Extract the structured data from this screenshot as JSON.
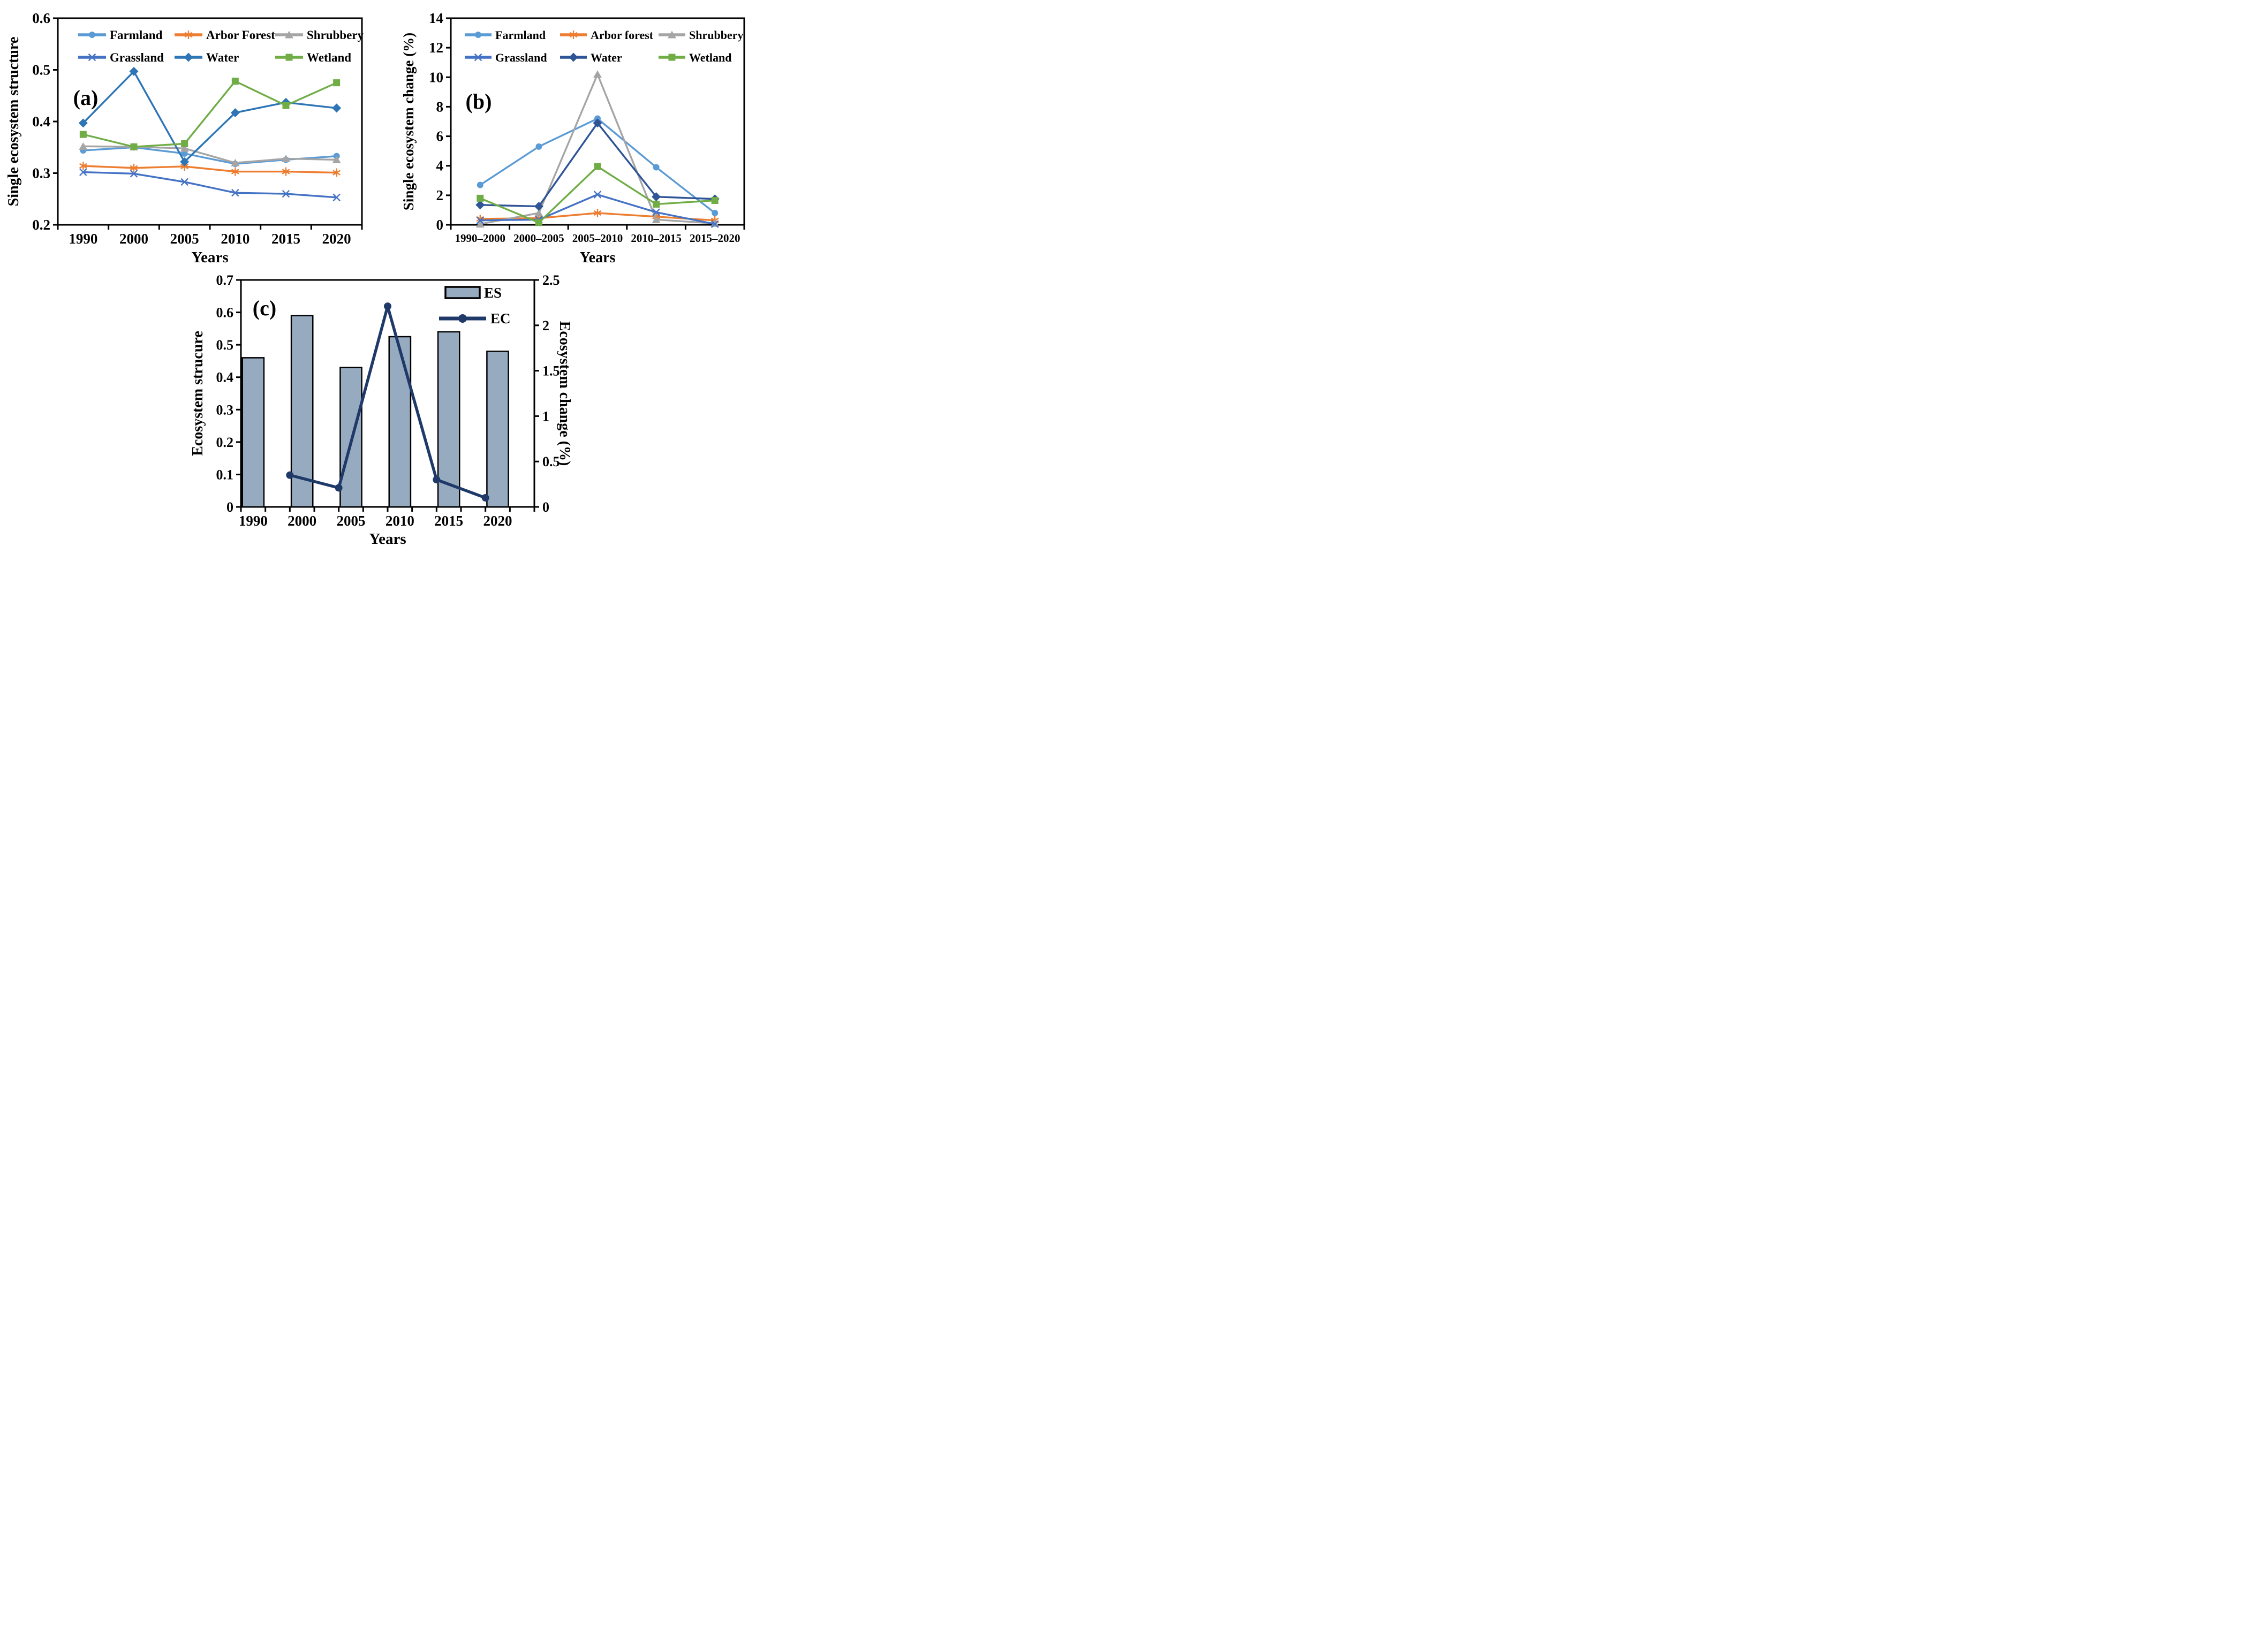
{
  "figure": {
    "background": "#ffffff",
    "panel_letters": [
      "(a)",
      "(b)",
      "(c)"
    ]
  },
  "chart_data": [
    {
      "id": "a",
      "type": "line",
      "panel_label": "(a)",
      "xlabel": "Years",
      "ylabel": "Single ecosystem structure",
      "ylim": [
        0.2,
        0.6
      ],
      "yticks": [
        0.2,
        0.3,
        0.4,
        0.5,
        0.6
      ],
      "ytick_labels": [
        "0.2",
        "0.3",
        "0.4",
        "0.5",
        "0.6"
      ],
      "categories": [
        "1990",
        "2000",
        "2005",
        "2010",
        "2015",
        "2020"
      ],
      "grid": false,
      "legend_position": "top-inside",
      "series": [
        {
          "name": "Farmland",
          "color": "#5B9BD5",
          "marker": "circle",
          "values": [
            0.344,
            0.35,
            0.338,
            0.318,
            0.326,
            0.333
          ]
        },
        {
          "name": "Arbor Forest",
          "color": "#ED7D31",
          "marker": "asterisk",
          "values": [
            0.314,
            0.31,
            0.313,
            0.303,
            0.303,
            0.301
          ]
        },
        {
          "name": "Shrubbery",
          "color": "#A5A5A5",
          "marker": "triangle",
          "values": [
            0.352,
            0.351,
            0.348,
            0.32,
            0.328,
            0.326
          ]
        },
        {
          "name": "Grassland",
          "color": "#4472C4",
          "marker": "x",
          "values": [
            0.302,
            0.299,
            0.283,
            0.262,
            0.26,
            0.253
          ]
        },
        {
          "name": "Water",
          "color": "#2E75B6",
          "marker": "diamond",
          "values": [
            0.397,
            0.497,
            0.322,
            0.417,
            0.437,
            0.426
          ]
        },
        {
          "name": "Wetland",
          "color": "#70AD47",
          "marker": "square",
          "values": [
            0.375,
            0.351,
            0.357,
            0.478,
            0.431,
            0.475
          ]
        }
      ]
    },
    {
      "id": "b",
      "type": "line",
      "panel_label": "(b)",
      "xlabel": "Years",
      "ylabel": "Single ecosystem change (%)",
      "ylim": [
        0,
        14
      ],
      "yticks": [
        0,
        2,
        4,
        6,
        8,
        10,
        12,
        14
      ],
      "ytick_labels": [
        "0",
        "2",
        "4",
        "6",
        "8",
        "10",
        "12",
        "14"
      ],
      "categories": [
        "1990–2000",
        "2000–2005",
        "2005–2010",
        "2010–2015",
        "2015–2020"
      ],
      "grid": false,
      "legend_position": "top-inside",
      "series": [
        {
          "name": "Farmland",
          "color": "#5B9BD5",
          "marker": "circle",
          "values": [
            2.7,
            5.3,
            7.2,
            3.9,
            0.8
          ]
        },
        {
          "name": "Arbor forest",
          "color": "#ED7D31",
          "marker": "asterisk",
          "values": [
            0.4,
            0.45,
            0.8,
            0.55,
            0.3
          ]
        },
        {
          "name": "Shrubbery",
          "color": "#A5A5A5",
          "marker": "triangle",
          "values": [
            0.05,
            0.8,
            10.2,
            0.35,
            0.1
          ]
        },
        {
          "name": "Grassland",
          "color": "#4472C4",
          "marker": "x",
          "values": [
            0.3,
            0.35,
            2.05,
            0.85,
            0.05
          ]
        },
        {
          "name": "Water",
          "color": "#2F5597",
          "marker": "diamond",
          "values": [
            1.35,
            1.25,
            6.9,
            1.9,
            1.75
          ]
        },
        {
          "name": "Wetland",
          "color": "#70AD47",
          "marker": "square",
          "values": [
            1.8,
            0.15,
            3.95,
            1.4,
            1.65
          ]
        }
      ]
    },
    {
      "id": "c",
      "type": "combo",
      "panel_label": "(c)",
      "xlabel": "Years",
      "ylabel_left": "Ecosystem strucure",
      "ylabel_right": "Ecosystem change (%)",
      "ylim_left": [
        0,
        0.7
      ],
      "yticks_left": [
        0,
        0.1,
        0.2,
        0.3,
        0.4,
        0.5,
        0.6,
        0.7
      ],
      "ytick_labels_left": [
        "0",
        "0.1",
        "0.2",
        "0.3",
        "0.4",
        "0.5",
        "0.6",
        "0.7"
      ],
      "ylim_right": [
        0,
        2.5
      ],
      "yticks_right": [
        0,
        0.5,
        1,
        1.5,
        2,
        2.5
      ],
      "ytick_labels_right": [
        "0",
        "0.5",
        "1",
        "1.5",
        "2",
        "2.5"
      ],
      "categories": [
        "1990",
        "2000",
        "2005",
        "2010",
        "2015",
        "2020"
      ],
      "bars": {
        "name": "ES",
        "fill": "#96AAC0",
        "stroke": "#000000",
        "values": [
          0.46,
          0.59,
          0.43,
          0.525,
          0.54,
          0.48
        ]
      },
      "line": {
        "name": "EC",
        "color": "#1F3A68",
        "marker": "circle",
        "x_positions": "interval-boundaries",
        "values": [
          0.35,
          0.21,
          2.21,
          0.3,
          0.1
        ]
      }
    }
  ]
}
